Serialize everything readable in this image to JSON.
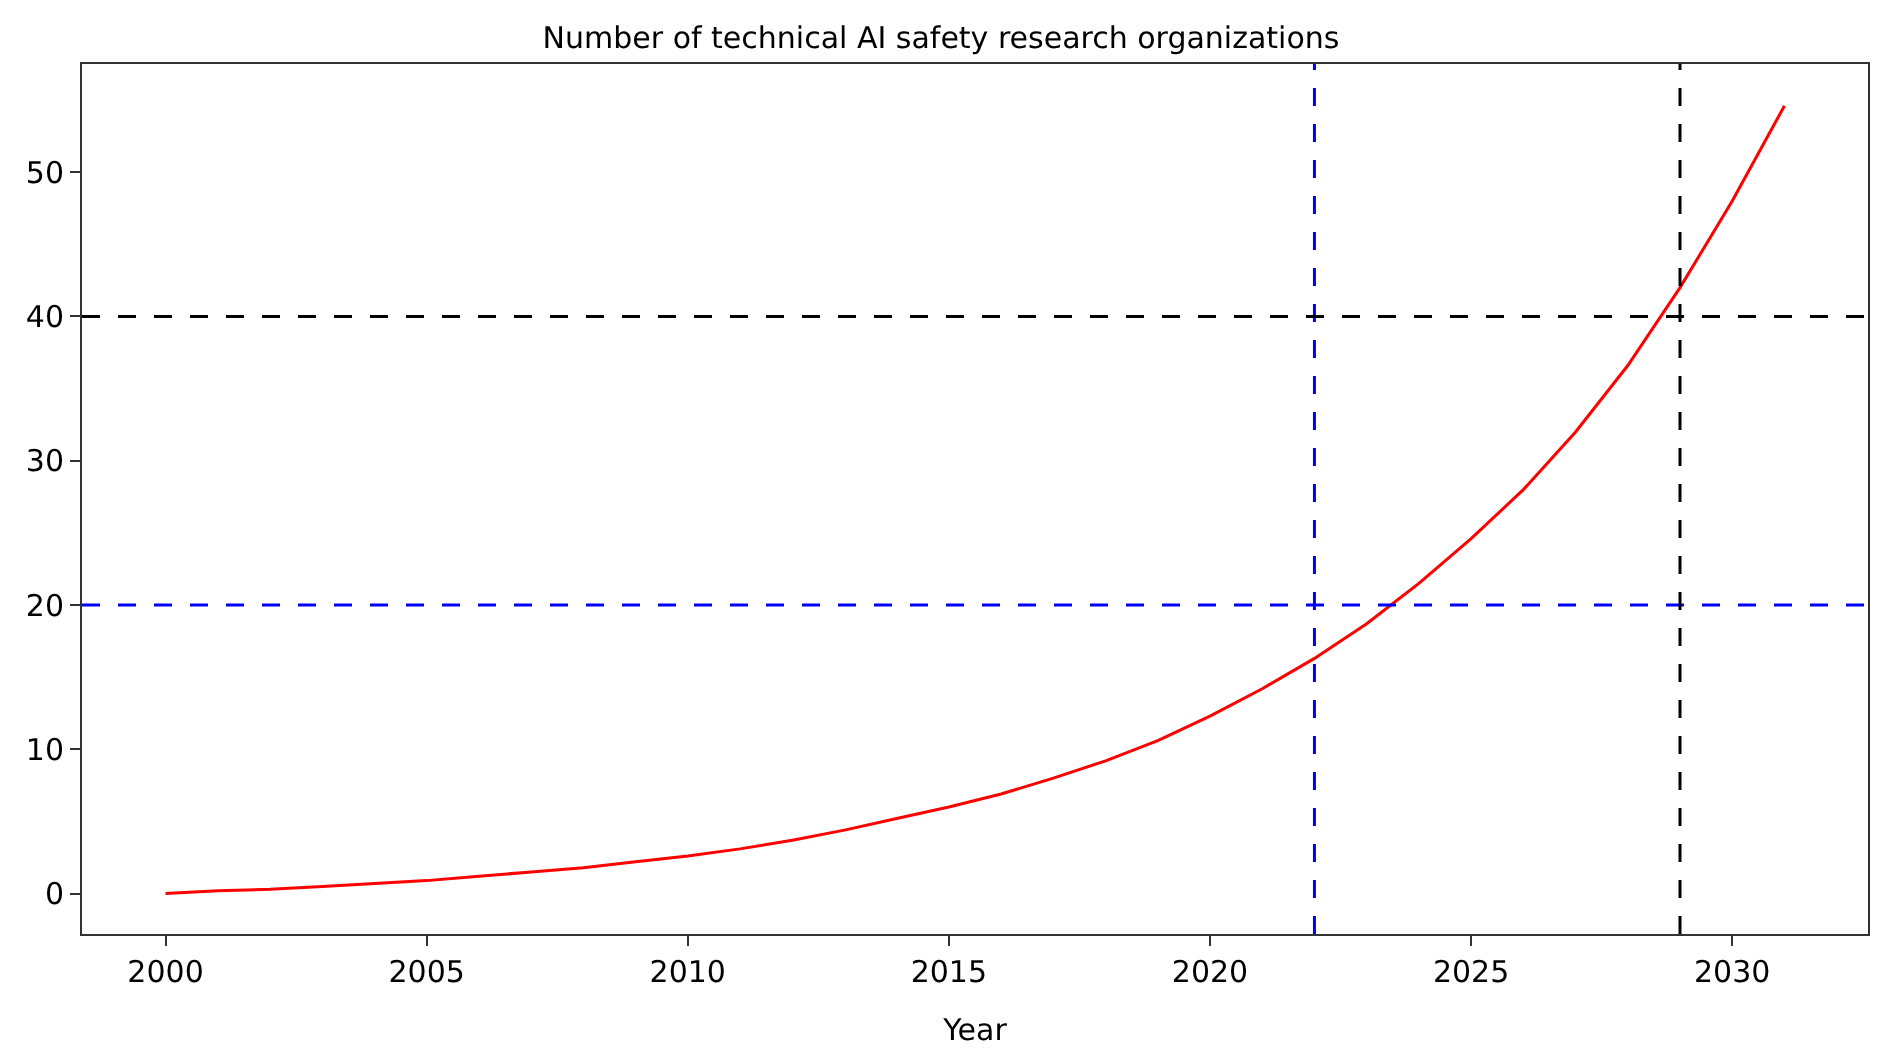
{
  "chart_data": {
    "type": "line",
    "title": "Number of technical AI safety research organizations",
    "xlabel": "Year",
    "x": [
      2000,
      2001,
      2002,
      2003,
      2004,
      2005,
      2006,
      2007,
      2008,
      2009,
      2010,
      2011,
      2012,
      2013,
      2014,
      2015,
      2016,
      2017,
      2018,
      2019,
      2020,
      2021,
      2022,
      2023,
      2024,
      2025,
      2026,
      2027,
      2028,
      2029,
      2030,
      2031
    ],
    "series": [
      {
        "color": "#ff0000",
        "values": [
          0,
          0.2,
          0.3,
          0.5,
          0.7,
          0.9,
          1.2,
          1.5,
          1.8,
          2.2,
          2.6,
          3.1,
          3.7,
          4.4,
          5.2,
          6.0,
          6.9,
          8.0,
          9.2,
          10.6,
          12.3,
          14.2,
          16.3,
          18.7,
          21.5,
          24.6,
          28,
          32,
          36.6,
          42,
          48,
          54.6
        ]
      }
    ],
    "xlim": [
      1998.4,
      2032.6
    ],
    "ylim": [
      -2.8,
      57.5
    ],
    "xticks": [
      2000,
      2005,
      2010,
      2015,
      2020,
      2025,
      2030
    ],
    "yticks": [
      0,
      10,
      20,
      30,
      40,
      50
    ],
    "ref_lines": [
      {
        "axis": "x",
        "value": 2022,
        "color": "#0000ff",
        "line_style": "dashed"
      },
      {
        "axis": "y",
        "value": 20,
        "color": "#0000ff",
        "line_style": "dashed"
      },
      {
        "axis": "x",
        "value": 2029,
        "color": "#000000",
        "line_style": "dashed"
      },
      {
        "axis": "y",
        "value": 40,
        "color": "#000000",
        "line_style": "dashed"
      }
    ],
    "line_style": "solid",
    "marker": "none"
  }
}
